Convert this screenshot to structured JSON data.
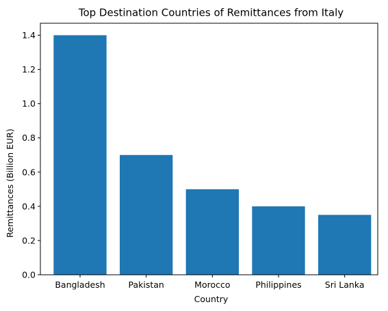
{
  "chart_data": {
    "type": "bar",
    "title": "Top Destination Countries of Remittances from Italy",
    "xlabel": "Country",
    "ylabel": "Remittances (Billion EUR)",
    "categories": [
      "Bangladesh",
      "Pakistan",
      "Morocco",
      "Philippines",
      "Sri Lanka"
    ],
    "values": [
      1.4,
      0.7,
      0.5,
      0.4,
      0.35
    ],
    "ylim": [
      0,
      1.47
    ],
    "yticks": [
      "0.0",
      "0.2",
      "0.4",
      "0.6",
      "0.8",
      "1.0",
      "1.2",
      "1.4"
    ],
    "bar_color": "#1f77b4",
    "grid": false,
    "legend": "none"
  }
}
